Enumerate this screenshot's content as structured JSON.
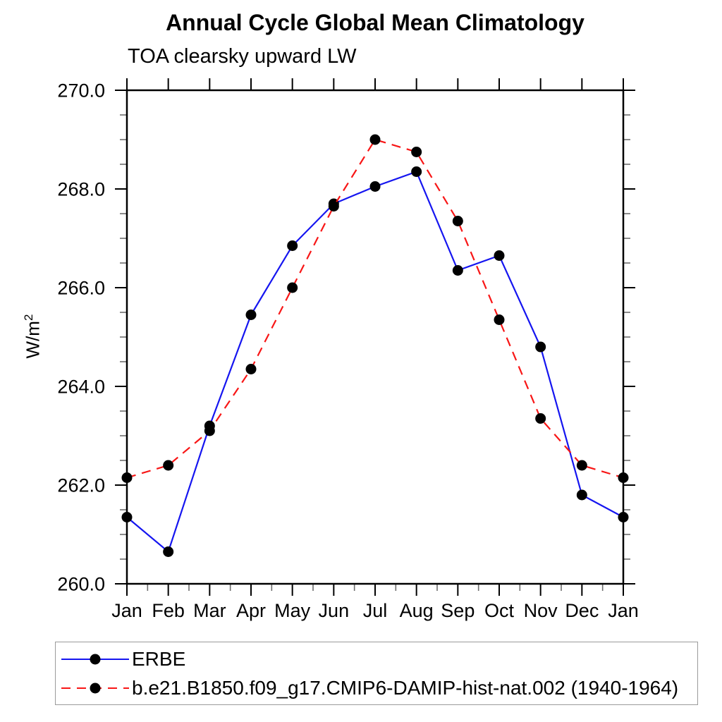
{
  "header": {
    "title": "Annual Cycle Global Mean Climatology",
    "subtitle": "TOA clearsky upward LW"
  },
  "y_axis": {
    "unit_base": "W/m",
    "unit_exponent": "2"
  },
  "chart_data": {
    "type": "line",
    "categories": [
      "Jan",
      "Feb",
      "Mar",
      "Apr",
      "May",
      "Jun",
      "Jul",
      "Aug",
      "Sep",
      "Oct",
      "Nov",
      "Dec",
      "Jan"
    ],
    "series": [
      {
        "name": "ERBE",
        "color": "#1515f0",
        "line_style": "solid",
        "marker": "filled-circle",
        "marker_color": "#000000",
        "values": [
          261.35,
          260.65,
          263.2,
          265.45,
          266.85,
          267.7,
          268.05,
          268.35,
          266.35,
          266.65,
          264.8,
          261.8,
          261.35
        ]
      },
      {
        "name": "b.e21.B1850.f09_g17.CMIP6-DAMIP-hist-nat.002 (1940-1964)",
        "color": "#f81616",
        "line_style": "dashed",
        "marker": "filled-circle",
        "marker_color": "#000000",
        "values": [
          262.15,
          262.4,
          263.1,
          264.35,
          266.0,
          267.65,
          269.0,
          268.75,
          267.35,
          265.35,
          263.35,
          262.4,
          262.15
        ]
      }
    ],
    "ylim": [
      260.0,
      270.0
    ],
    "y_major_step": 2.0,
    "y_minor_step": 0.5,
    "y_tick_labels": [
      "260.0",
      "262.0",
      "264.0",
      "266.0",
      "268.0",
      "270.0"
    ],
    "grid": "off",
    "frame": "box",
    "tick_direction": "out",
    "legend_position": "bottom-left"
  }
}
